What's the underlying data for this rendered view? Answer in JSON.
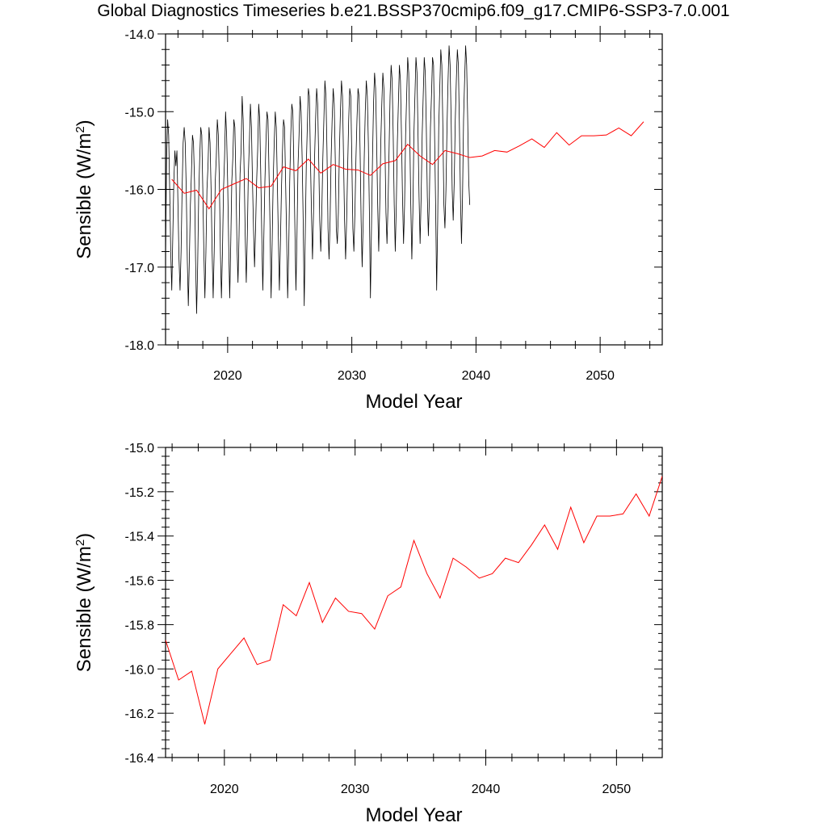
{
  "title": "Global Diagnostics Timeseries b.e21.BSSP370cmip6.f09_g17.CMIP6-SSP3-7.0.001",
  "colors": {
    "monthly": "#000000",
    "annual": "#ff0000"
  },
  "chart_data": [
    {
      "type": "line",
      "xlabel": "Model Year",
      "ylabel": "Sensible (W/m",
      "ylabel_sup": "2",
      "ylabel_close": ")",
      "xlim": [
        2015,
        2055
      ],
      "ylim": [
        -18.0,
        -14.0
      ],
      "xticks": [
        2020,
        2030,
        2040,
        2050
      ],
      "xtick_labels": [
        "2020",
        "2030",
        "2040",
        "2050"
      ],
      "yticks": [
        -18.0,
        -17.0,
        -16.0,
        -15.0,
        -14.0
      ],
      "ytick_labels": [
        "-18.0",
        "-17.0",
        "-16.0",
        "-15.0",
        "-14.0"
      ],
      "series": [
        {
          "kind": "monthly",
          "color": "#000000",
          "x_start": 2015.0,
          "x_step": 0.08333,
          "values": [
            -16.9,
            -15.6,
            -15.1,
            -15.3,
            -16.0,
            -16.8,
            -17.3,
            -16.6,
            -15.9,
            -15.5,
            -15.7,
            -15.5,
            -16.2,
            -16.9,
            -17.3,
            -16.8,
            -16.0,
            -15.4,
            -15.2,
            -15.4,
            -16.0,
            -16.9,
            -17.5,
            -16.9,
            -16.2,
            -15.8,
            -15.3,
            -15.4,
            -15.9,
            -16.9,
            -17.6,
            -17.0,
            -16.1,
            -15.6,
            -15.2,
            -15.3,
            -16.0,
            -16.8,
            -17.4,
            -16.8,
            -16.0,
            -15.7,
            -15.2,
            -15.4,
            -16.0,
            -16.8,
            -17.4,
            -16.8,
            -15.9,
            -15.6,
            -15.1,
            -15.3,
            -15.9,
            -16.8,
            -17.4,
            -16.8,
            -16.0,
            -15.6,
            -15.0,
            -15.3,
            -15.9,
            -16.7,
            -17.4,
            -16.7,
            -15.9,
            -15.6,
            -15.1,
            -15.2,
            -15.9,
            -16.7,
            -17.2,
            -16.6,
            -15.8,
            -15.5,
            -14.8,
            -15.1,
            -15.8,
            -16.6,
            -17.2,
            -16.6,
            -15.8,
            -15.4,
            -14.9,
            -15.2,
            -15.9,
            -16.5,
            -17.0,
            -16.5,
            -15.9,
            -15.5,
            -14.9,
            -15.1,
            -15.8,
            -16.6,
            -17.3,
            -16.6,
            -15.9,
            -15.4,
            -15.0,
            -15.1,
            -15.8,
            -16.5,
            -17.4,
            -16.7,
            -15.9,
            -15.4,
            -15.0,
            -15.2,
            -15.9,
            -16.6,
            -17.3,
            -16.7,
            -16.0,
            -15.5,
            -15.1,
            -15.2,
            -15.9,
            -16.6,
            -17.4,
            -16.8,
            -15.9,
            -15.3,
            -14.9,
            -15.0,
            -15.7,
            -16.5,
            -17.3,
            -16.6,
            -15.7,
            -15.3,
            -14.8,
            -15.0,
            -15.6,
            -16.4,
            -17.5,
            -16.6,
            -15.7,
            -15.2,
            -14.7,
            -14.8,
            -15.6,
            -16.3,
            -16.9,
            -16.3,
            -15.6,
            -15.1,
            -14.7,
            -14.9,
            -15.6,
            -16.4,
            -16.8,
            -16.3,
            -15.6,
            -15.1,
            -14.6,
            -14.8,
            -15.5,
            -16.5,
            -16.9,
            -16.4,
            -15.6,
            -15.1,
            -14.7,
            -14.9,
            -15.6,
            -16.5,
            -16.7,
            -16.3,
            -15.5,
            -15.0,
            -14.6,
            -14.8,
            -15.6,
            -16.4,
            -16.9,
            -16.4,
            -15.7,
            -15.1,
            -14.7,
            -14.8,
            -15.6,
            -16.5,
            -16.8,
            -16.3,
            -15.6,
            -15.1,
            -14.7,
            -14.8,
            -15.5,
            -16.4,
            -17.0,
            -16.4,
            -15.6,
            -15.0,
            -14.6,
            -14.8,
            -15.4,
            -16.3,
            -17.4,
            -16.5,
            -15.6,
            -14.9,
            -14.5,
            -14.7,
            -15.4,
            -16.2,
            -16.8,
            -16.2,
            -15.4,
            -14.9,
            -14.5,
            -14.7,
            -15.4,
            -16.3,
            -16.7,
            -16.2,
            -15.5,
            -14.8,
            -14.4,
            -14.6,
            -15.3,
            -16.2,
            -16.8,
            -16.2,
            -15.4,
            -14.9,
            -14.4,
            -14.6,
            -15.3,
            -16.1,
            -16.7,
            -16.2,
            -15.3,
            -14.8,
            -14.3,
            -14.5,
            -15.3,
            -16.2,
            -16.9,
            -16.3,
            -15.3,
            -14.8,
            -14.3,
            -14.5,
            -15.3,
            -16.1,
            -16.7,
            -16.1,
            -15.3,
            -14.8,
            -14.3,
            -14.5,
            -15.2,
            -16.1,
            -16.6,
            -16.1,
            -15.2,
            -14.8,
            -14.3,
            -14.4,
            -15.3,
            -16.2,
            -17.3,
            -16.4,
            -15.2,
            -14.7,
            -14.2,
            -14.4,
            -15.2,
            -16.2,
            -16.5,
            -16.0,
            -15.2,
            -14.6,
            -14.15,
            -14.4,
            -15.1,
            -16.0,
            -16.4,
            -15.9,
            -15.1,
            -14.6,
            -14.2,
            -14.4,
            -15.2,
            -16.1,
            -16.7,
            -16.1,
            -15.1,
            -14.6,
            -14.15,
            -14.4,
            -15.1,
            -15.9,
            -16.2
          ]
        },
        {
          "kind": "annual",
          "color": "#ff0000",
          "x": [
            2015.5,
            2016.5,
            2017.5,
            2018.5,
            2019.5,
            2020.5,
            2021.5,
            2022.5,
            2023.5,
            2024.5,
            2025.5,
            2026.5,
            2027.5,
            2028.5,
            2029.5,
            2030.5,
            2031.5,
            2032.5,
            2033.5,
            2034.5,
            2035.5,
            2036.5,
            2037.5,
            2038.5,
            2039.5,
            2040.5,
            2041.5,
            2042.5,
            2043.5,
            2044.5,
            2045.5,
            2046.5,
            2047.5,
            2048.5,
            2049.5,
            2050.5,
            2051.5,
            2052.5,
            2053.5
          ],
          "values": [
            -15.87,
            -16.05,
            -16.01,
            -16.25,
            -16.0,
            -15.93,
            -15.86,
            -15.98,
            -15.96,
            -15.71,
            -15.76,
            -15.61,
            -15.79,
            -15.68,
            -15.74,
            -15.75,
            -15.82,
            -15.67,
            -15.63,
            -15.42,
            -15.57,
            -15.68,
            -15.5,
            -15.54,
            -15.59,
            -15.57,
            -15.5,
            -15.52,
            -15.44,
            -15.35,
            -15.46,
            -15.27,
            -15.43,
            -15.31,
            -15.31,
            -15.3,
            -15.21,
            -15.31,
            -15.13
          ]
        }
      ]
    },
    {
      "type": "line",
      "xlabel": "Model Year",
      "ylabel": "Sensible (W/m",
      "ylabel_sup": "2",
      "ylabel_close": ")",
      "xlim": [
        2015.5,
        2053.5
      ],
      "ylim": [
        -16.4,
        -15.0
      ],
      "xticks": [
        2020,
        2030,
        2040,
        2050
      ],
      "xtick_labels": [
        "2020",
        "2030",
        "2040",
        "2050"
      ],
      "yticks": [
        -16.4,
        -16.2,
        -16.0,
        -15.8,
        -15.6,
        -15.4,
        -15.2,
        -15.0
      ],
      "ytick_labels": [
        "-16.4",
        "-16.2",
        "-16.0",
        "-15.8",
        "-15.6",
        "-15.4",
        "-15.2",
        "-15.0"
      ],
      "series": [
        {
          "kind": "annual",
          "color": "#ff0000",
          "x": [
            2015.5,
            2016.5,
            2017.5,
            2018.5,
            2019.5,
            2020.5,
            2021.5,
            2022.5,
            2023.5,
            2024.5,
            2025.5,
            2026.5,
            2027.5,
            2028.5,
            2029.5,
            2030.5,
            2031.5,
            2032.5,
            2033.5,
            2034.5,
            2035.5,
            2036.5,
            2037.5,
            2038.5,
            2039.5,
            2040.5,
            2041.5,
            2042.5,
            2043.5,
            2044.5,
            2045.5,
            2046.5,
            2047.5,
            2048.5,
            2049.5,
            2050.5,
            2051.5,
            2052.5,
            2053.5
          ],
          "values": [
            -15.87,
            -16.05,
            -16.01,
            -16.25,
            -16.0,
            -15.93,
            -15.86,
            -15.98,
            -15.96,
            -15.71,
            -15.76,
            -15.61,
            -15.79,
            -15.68,
            -15.74,
            -15.75,
            -15.82,
            -15.67,
            -15.63,
            -15.42,
            -15.57,
            -15.68,
            -15.5,
            -15.54,
            -15.59,
            -15.57,
            -15.5,
            -15.52,
            -15.44,
            -15.35,
            -15.46,
            -15.27,
            -15.43,
            -15.31,
            -15.31,
            -15.3,
            -15.21,
            -15.31,
            -15.13
          ]
        }
      ]
    }
  ]
}
